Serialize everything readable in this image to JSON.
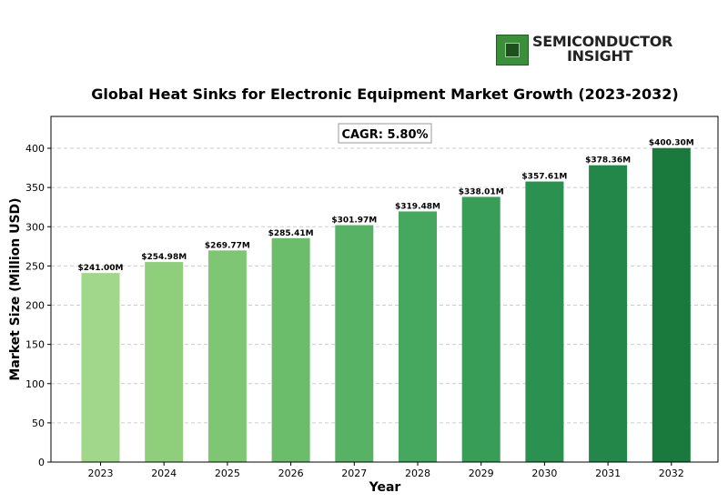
{
  "logo": {
    "line1": "SEMICONDUCTOR",
    "line2": "INSIGHT",
    "icon": "chip-icon"
  },
  "chart_data": {
    "type": "bar",
    "title": "Global Heat Sinks for Electronic Equipment Market Growth (2023-2032)",
    "xlabel": "Year",
    "ylabel": "Market Size (Million USD)",
    "annotation": "CAGR: 5.80%",
    "categories": [
      "2023",
      "2024",
      "2025",
      "2026",
      "2027",
      "2028",
      "2029",
      "2030",
      "2031",
      "2032"
    ],
    "values": [
      241.0,
      254.98,
      269.77,
      285.41,
      301.97,
      319.48,
      338.01,
      357.61,
      378.36,
      400.3
    ],
    "data_labels": [
      "$241.00M",
      "$254.98M",
      "$269.77M",
      "$285.41M",
      "$301.97M",
      "$319.48M",
      "$338.01M",
      "$357.61M",
      "$378.36M",
      "$400.30M"
    ],
    "colors": [
      "#a1d78a",
      "#8fcf7c",
      "#7ec673",
      "#6bbd6b",
      "#58b266",
      "#46a85f",
      "#379d57",
      "#2b9150",
      "#23874a",
      "#1a7a3e"
    ],
    "ylim": [
      0,
      420
    ],
    "yticks": [
      0,
      50,
      100,
      150,
      200,
      250,
      300,
      350,
      400
    ],
    "grid": "y-dashed",
    "legend": "none"
  }
}
